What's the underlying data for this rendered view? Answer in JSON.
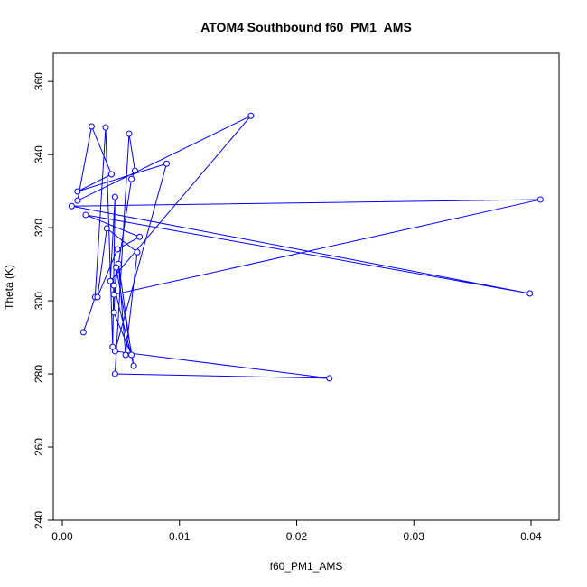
{
  "chart_data": {
    "type": "line",
    "title": "ATOM4 Southbound f60_PM1_AMS",
    "x_label": "f60_PM1_AMS",
    "y_label": "Theta (K)",
    "x": [
      0.0018,
      0.0028,
      0.0037,
      0.0043,
      0.0045,
      0.0041,
      0.0161,
      0.0013,
      0.0025,
      0.0042,
      0.0013,
      0.0089,
      0.0045,
      0.0228,
      0.0045,
      0.0057,
      0.0062,
      0.0059,
      0.0044,
      0.0408,
      0.0008,
      0.0399,
      0.002,
      0.0066,
      0.0047,
      0.003,
      0.0038,
      0.0064,
      0.0054,
      0.0048,
      0.0059,
      0.0044,
      0.0046,
      0.0061,
      0.0044
    ],
    "values": [
      291.4,
      301,
      347.4,
      287.4,
      328.4,
      305.4,
      350.6,
      327.4,
      347.7,
      334.6,
      329.9,
      337.5,
      286.2,
      278.8,
      280,
      345.7,
      335.6,
      333.3,
      301.7,
      327.7,
      325.9,
      302,
      323.5,
      317.5,
      314.1,
      301,
      319.8,
      313.3,
      285.2,
      310.1,
      285.2,
      296.8,
      309.1,
      282.2,
      304.2
    ],
    "color": "#0000ff",
    "xlim": [
      -0.00077,
      0.04239
    ],
    "ylim": [
      240,
      367.7
    ],
    "xticks": [
      {
        "value": 0,
        "label": "0.00"
      },
      {
        "value": 0.01,
        "label": "0.01"
      },
      {
        "value": 0.02,
        "label": "0.02"
      },
      {
        "value": 0.03,
        "label": "0.03"
      },
      {
        "value": 0.04,
        "label": "0.04"
      }
    ],
    "yticks": [
      240,
      260,
      280,
      300,
      320,
      340,
      360
    ]
  }
}
